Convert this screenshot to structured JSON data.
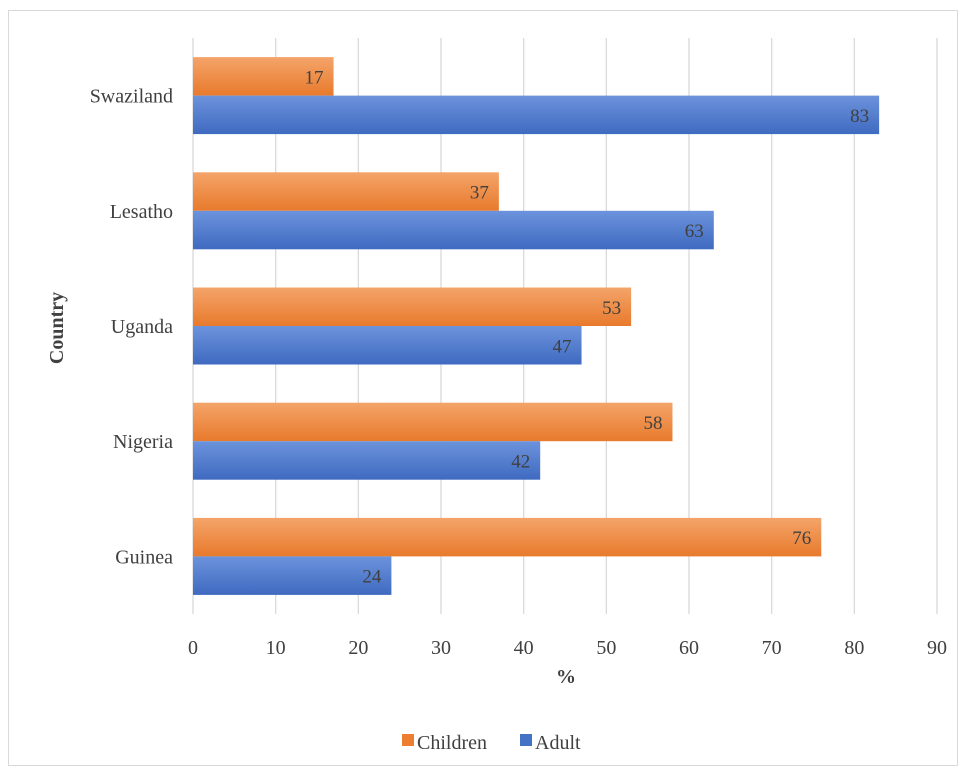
{
  "chart_data": {
    "type": "bar",
    "orientation": "horizontal",
    "categories": [
      "Swaziland",
      "Lesatho",
      "Uganda",
      "Nigeria",
      "Guinea"
    ],
    "series": [
      {
        "name": "Children",
        "color": "#ED7D31",
        "values": [
          17,
          37,
          53,
          58,
          76
        ]
      },
      {
        "name": "Adult",
        "color": "#4472C4",
        "values": [
          83,
          63,
          47,
          42,
          24
        ]
      }
    ],
    "xlabel": "%",
    "ylabel": "Country",
    "xlim": [
      0,
      90
    ],
    "xticks": [
      0,
      10,
      20,
      30,
      40,
      50,
      60,
      70,
      80,
      90
    ],
    "grid": "vertical",
    "legend": "bottom"
  }
}
